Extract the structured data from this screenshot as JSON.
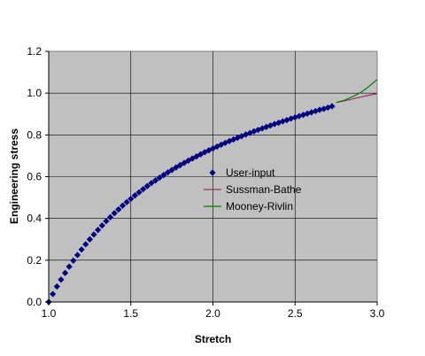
{
  "chart_data": {
    "type": "line",
    "xlabel": "Stretch",
    "ylabel": "Engineering stress",
    "xlim": [
      1.0,
      3.0
    ],
    "ylim": [
      0.0,
      1.2
    ],
    "x_ticks": [
      "1.0",
      "1.5",
      "2.0",
      "2.5",
      "3.0"
    ],
    "y_ticks": [
      "0.0",
      "0.2",
      "0.4",
      "0.6",
      "0.8",
      "1.0",
      "1.2"
    ],
    "grid": true,
    "plot_background": "#c0c0c0",
    "legend_position": "center-right",
    "series": [
      {
        "name": "User-input",
        "style": "markers",
        "marker": "diamond",
        "color": "#000080",
        "x": [
          1.0,
          1.025,
          1.05,
          1.075,
          1.1,
          1.125,
          1.15,
          1.175,
          1.2,
          1.225,
          1.25,
          1.275,
          1.3,
          1.325,
          1.35,
          1.375,
          1.4,
          1.425,
          1.45,
          1.475,
          1.5,
          1.525,
          1.55,
          1.575,
          1.6,
          1.625,
          1.65,
          1.675,
          1.7,
          1.725,
          1.75,
          1.775,
          1.8,
          1.825,
          1.85,
          1.875,
          1.9,
          1.925,
          1.95,
          1.975,
          2.0,
          2.025,
          2.05,
          2.075,
          2.1,
          2.125,
          2.15,
          2.175,
          2.2,
          2.225,
          2.25,
          2.275,
          2.3,
          2.325,
          2.35,
          2.375,
          2.4,
          2.425,
          2.45,
          2.475,
          2.5,
          2.525,
          2.55,
          2.575,
          2.6,
          2.625,
          2.65,
          2.675,
          2.7,
          2.725
        ],
        "y": [
          0.0,
          0.038,
          0.074,
          0.107,
          0.139,
          0.169,
          0.198,
          0.225,
          0.251,
          0.276,
          0.3,
          0.323,
          0.345,
          0.366,
          0.387,
          0.406,
          0.425,
          0.443,
          0.461,
          0.478,
          0.494,
          0.51,
          0.525,
          0.54,
          0.555,
          0.569,
          0.582,
          0.595,
          0.608,
          0.62,
          0.632,
          0.644,
          0.655,
          0.666,
          0.677,
          0.687,
          0.697,
          0.707,
          0.717,
          0.726,
          0.735,
          0.744,
          0.753,
          0.762,
          0.77,
          0.778,
          0.786,
          0.794,
          0.802,
          0.809,
          0.817,
          0.824,
          0.831,
          0.838,
          0.845,
          0.852,
          0.858,
          0.865,
          0.871,
          0.878,
          0.884,
          0.89,
          0.896,
          0.902,
          0.908,
          0.914,
          0.92,
          0.925,
          0.931,
          0.937
        ]
      },
      {
        "name": "Sussman-Bathe",
        "style": "line",
        "color": "#993366",
        "x": [
          2.75,
          2.8,
          2.85,
          2.9,
          2.95,
          3.0
        ],
        "y": [
          0.955,
          0.963,
          0.972,
          0.981,
          0.99,
          0.998
        ]
      },
      {
        "name": "Mooney-Rivlin",
        "style": "line",
        "color": "#008000",
        "x": [
          2.75,
          2.8,
          2.85,
          2.9,
          2.95,
          3.0
        ],
        "y": [
          0.955,
          0.966,
          0.983,
          1.003,
          1.032,
          1.065
        ]
      }
    ]
  }
}
